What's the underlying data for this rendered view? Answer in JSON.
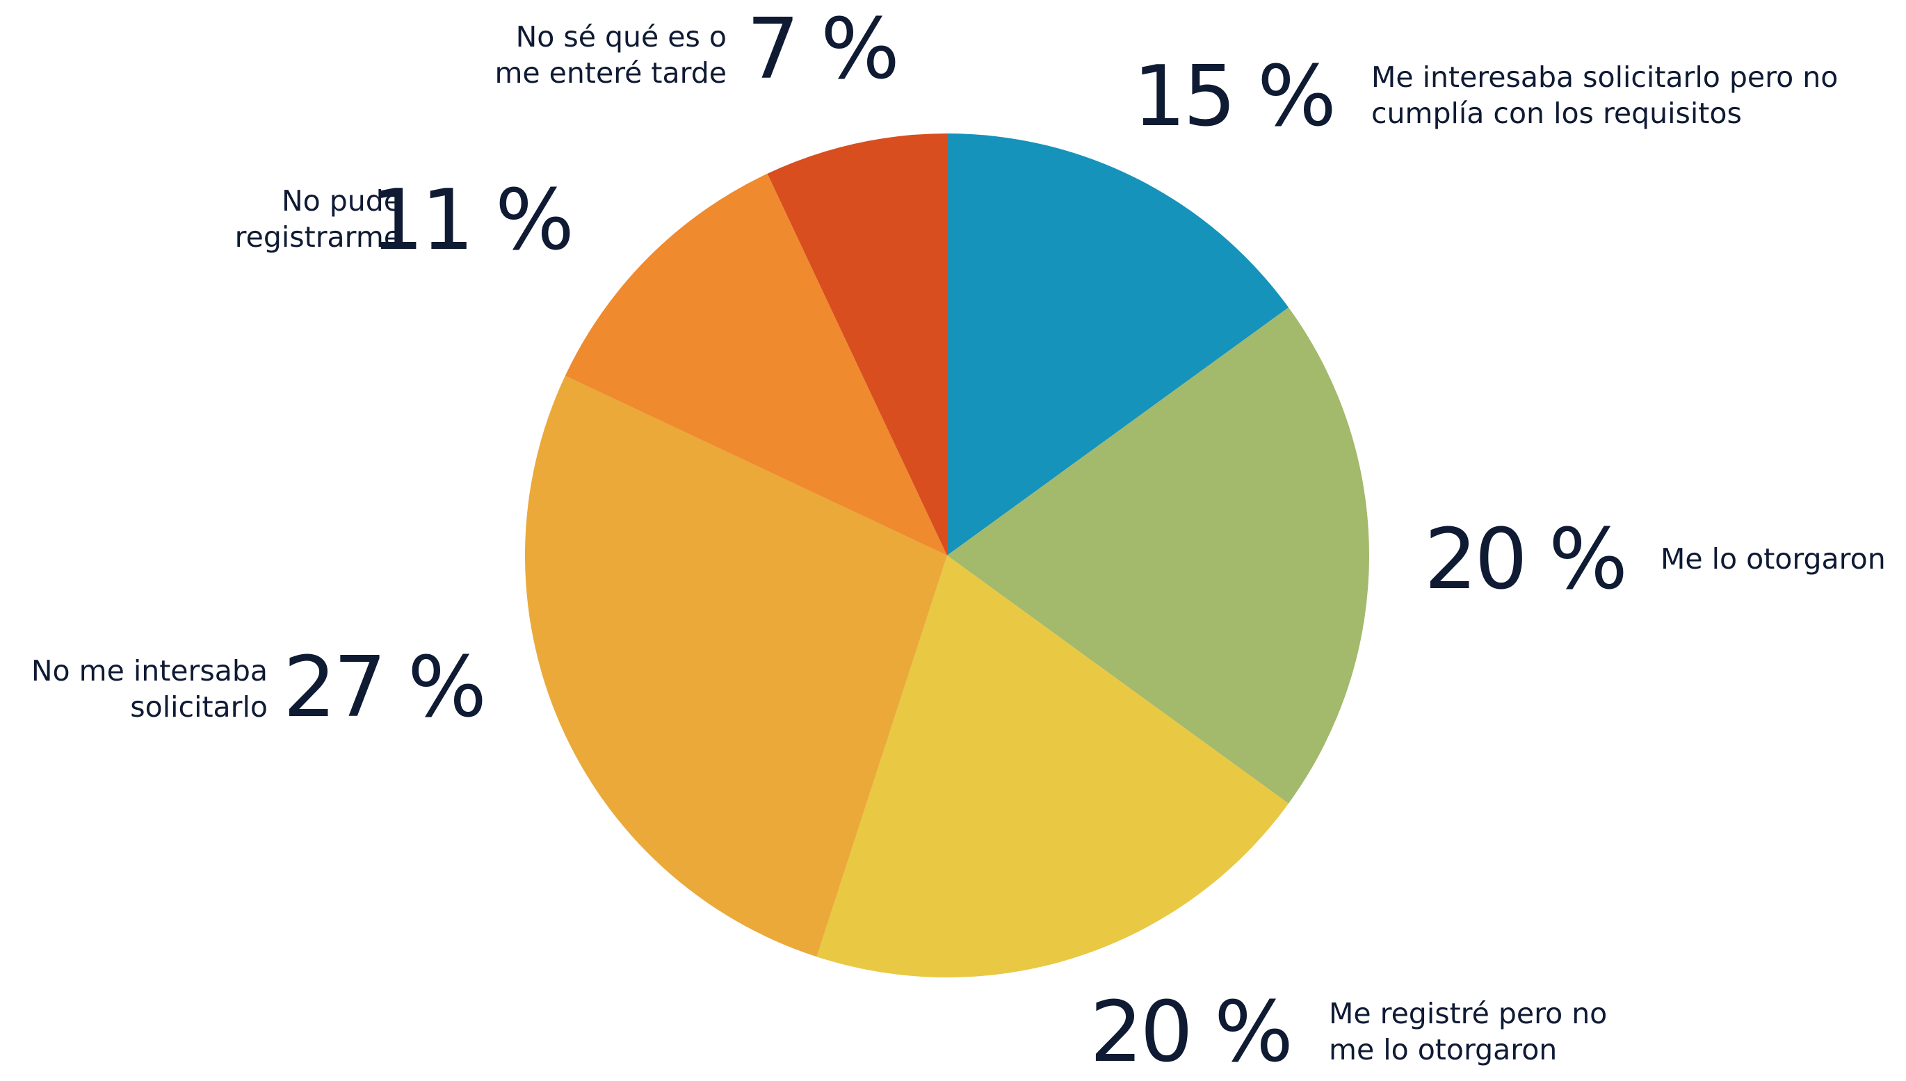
{
  "chart_data": {
    "type": "pie",
    "categories": [
      "Me interesaba solicitarlo pero no cumplía con los requisitos",
      "Me lo otorgaron",
      "Me registré pero no me lo otorgaron",
      "No me intersaba solicitarlo",
      "No pude registrarme",
      "No sé qué es o me enteré tarde"
    ],
    "values": [
      15,
      20,
      20,
      27,
      11,
      7
    ],
    "value_labels": [
      "15 %",
      "20 %",
      "20 %",
      "27 %",
      "11 %",
      "7 %"
    ],
    "colors": [
      "#1593bb",
      "#a3b96c",
      "#e9c843",
      "#eaa939",
      "#ef8a2e",
      "#d84e1f"
    ]
  }
}
